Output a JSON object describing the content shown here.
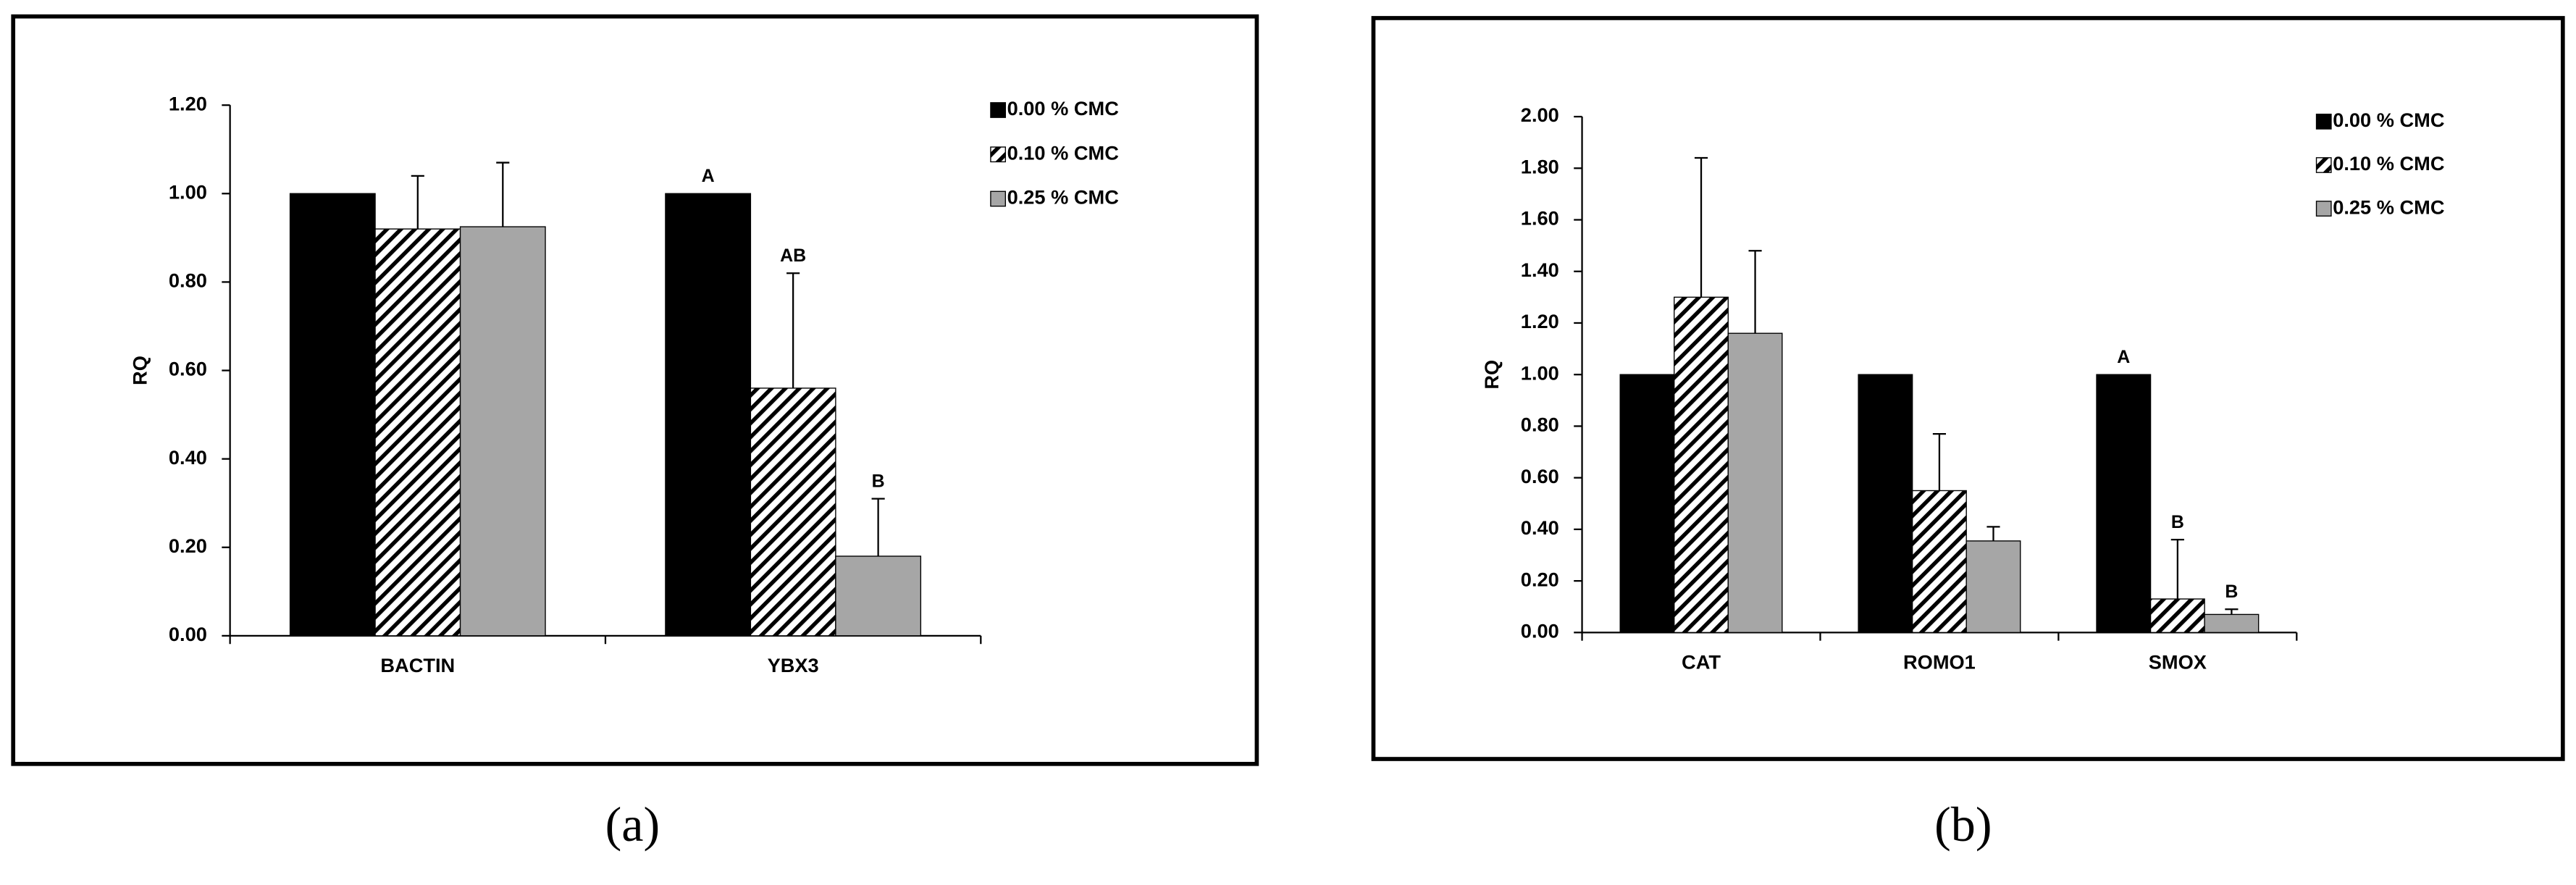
{
  "chart_data": [
    {
      "type": "bar",
      "panel_label": "(a)",
      "ylabel": "RQ",
      "categories": [
        "BACTIN",
        "YBX3"
      ],
      "series": [
        {
          "name": "0.00 % CMC",
          "color": "#000000",
          "values": [
            1.0,
            1.0
          ],
          "annotations": [
            null,
            "A"
          ]
        },
        {
          "name": "0.10 % CMC",
          "color": "#000000",
          "hatch": true,
          "values": [
            0.92,
            0.56
          ],
          "errors": [
            0.12,
            0.26
          ],
          "annotations": [
            null,
            "AB"
          ]
        },
        {
          "name": "0.25 % CMC",
          "color": "#a6a6a6",
          "values": [
            0.925,
            0.18
          ],
          "errors": [
            0.145,
            0.13
          ],
          "annotations": [
            null,
            "B"
          ]
        }
      ],
      "ylim": [
        0,
        1.2
      ],
      "yticks": [
        {
          "value": 0,
          "label": "0.00"
        },
        {
          "value": 0.2,
          "label": "0.20"
        },
        {
          "value": 0.4,
          "label": "0.40"
        },
        {
          "value": 0.6,
          "label": "0.60"
        },
        {
          "value": 0.8,
          "label": "0.80"
        },
        {
          "value": 1.0,
          "label": "1.00"
        },
        {
          "value": 1.2,
          "label": "1.20"
        }
      ]
    },
    {
      "type": "bar",
      "panel_label": "(b)",
      "ylabel": "RQ",
      "categories": [
        "CAT",
        "ROMO1",
        "SMOX"
      ],
      "series": [
        {
          "name": "0.00 % CMC",
          "color": "#000000",
          "values": [
            1.0,
            1.0,
            1.0
          ],
          "annotations": [
            null,
            null,
            "A"
          ]
        },
        {
          "name": "0.10 % CMC",
          "color": "#000000",
          "hatch": true,
          "values": [
            1.3,
            0.55,
            0.13
          ],
          "errors": [
            0.54,
            0.22,
            0.23
          ],
          "annotations": [
            null,
            null,
            "B"
          ]
        },
        {
          "name": "0.25 % CMC",
          "color": "#a6a6a6",
          "values": [
            1.16,
            0.355,
            0.07
          ],
          "errors": [
            0.32,
            0.055,
            0.02
          ],
          "annotations": [
            null,
            null,
            "B"
          ]
        }
      ],
      "ylim": [
        0,
        2.0
      ],
      "yticks": [
        {
          "value": 0,
          "label": "0.00"
        },
        {
          "value": 0.2,
          "label": "0.20"
        },
        {
          "value": 0.4,
          "label": "0.40"
        },
        {
          "value": 0.6,
          "label": "0.60"
        },
        {
          "value": 0.8,
          "label": "0.80"
        },
        {
          "value": 1.0,
          "label": "1.00"
        },
        {
          "value": 1.2,
          "label": "1.20"
        },
        {
          "value": 1.4,
          "label": "1.40"
        },
        {
          "value": 1.6,
          "label": "1.60"
        },
        {
          "value": 1.8,
          "label": "1.80"
        },
        {
          "value": 2.0,
          "label": "2.00"
        }
      ]
    }
  ]
}
